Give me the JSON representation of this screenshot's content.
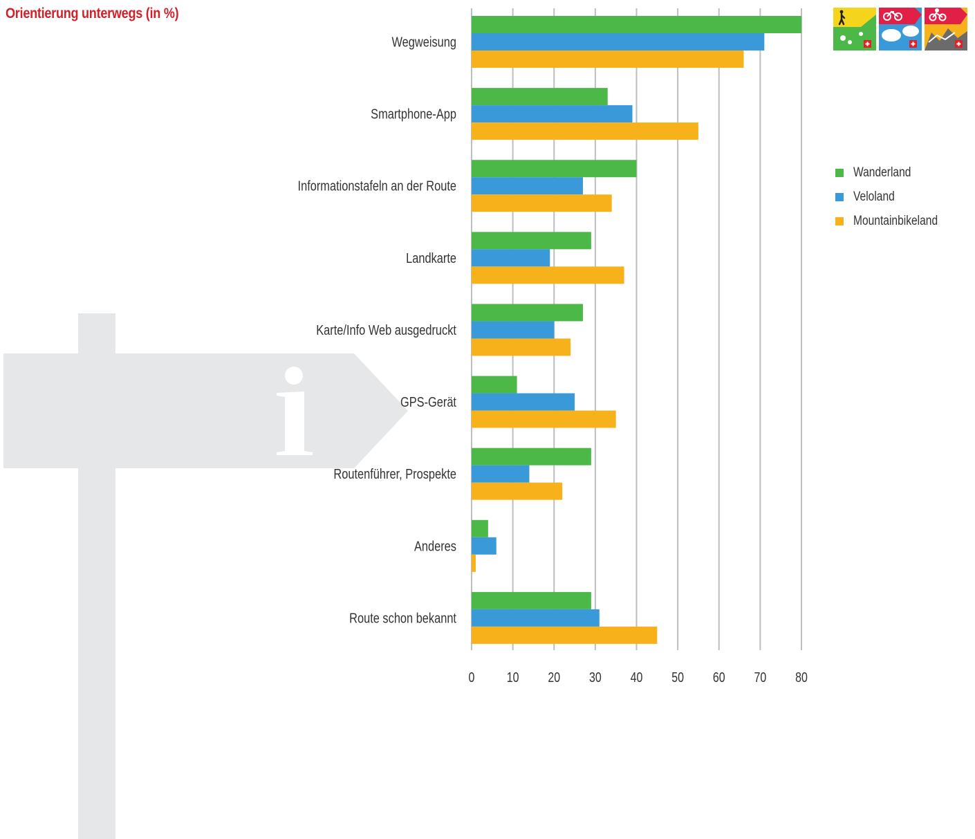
{
  "chart_data": {
    "type": "bar",
    "orientation": "horizontal",
    "title": "Orientierung unterwegs (in %)",
    "categories": [
      "Wegweisung",
      "Smartphone-App",
      "Informationstafeln an der Route",
      "Landkarte",
      "Karte/Info Web ausgedruckt",
      "GPS-Gerät",
      "Routenführer, Prospekte",
      "Anderes",
      "Route schon bekannt"
    ],
    "series": [
      {
        "name": "Wanderland",
        "color": "#4cb848",
        "values": [
          80,
          33,
          40,
          29,
          27,
          11,
          29,
          4,
          29
        ]
      },
      {
        "name": "Veloland",
        "color": "#3a9ad9",
        "values": [
          71,
          39,
          27,
          19,
          20,
          25,
          14,
          6,
          31
        ]
      },
      {
        "name": "Mountainbikeland",
        "color": "#f7b11b",
        "values": [
          66,
          55,
          34,
          37,
          24,
          35,
          22,
          1,
          45
        ]
      }
    ],
    "xlim": [
      0,
      80
    ],
    "xticks": [
      0,
      10,
      20,
      30,
      40,
      50,
      60,
      70,
      80
    ],
    "grid": true,
    "legend_position": "right"
  },
  "logos": [
    {
      "icon": "hiker-icon",
      "name": "wanderland-logo"
    },
    {
      "icon": "bicycle-icon",
      "name": "veloland-logo"
    },
    {
      "icon": "mountainbike-icon",
      "name": "mountainbikeland-logo"
    }
  ]
}
